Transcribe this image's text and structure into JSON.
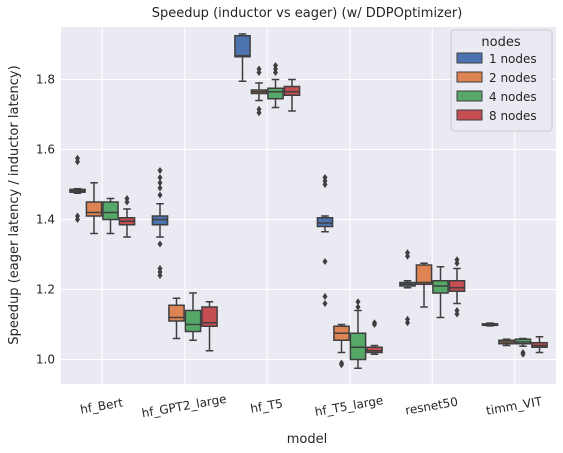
{
  "chart_data": {
    "type": "box",
    "title": "Speedup (inductor vs eager) (w/ DDPOptimizer)",
    "xlabel": "model",
    "ylabel": "Speedup (eager latency / inductor latency)",
    "ylim": [
      0.93,
      1.95
    ],
    "yticks": [
      "1.0",
      "1.2",
      "1.4",
      "1.6",
      "1.8"
    ],
    "yticks_values": [
      1.0,
      1.2,
      1.4,
      1.6,
      1.8
    ],
    "grid": true,
    "legend_position": "top-right",
    "legend_title": "nodes",
    "categories": [
      "hf_Bert",
      "hf_GPT2_large",
      "hf_T5",
      "hf_T5_large",
      "resnet50",
      "timm_VIT"
    ],
    "series": [
      {
        "name": "1 nodes",
        "color": "#4c72b0",
        "boxes": [
          {
            "q1": 1.478,
            "median": 1.482,
            "q3": 1.486,
            "whisker_low": 1.475,
            "whisker_high": 1.488,
            "outliers": [
              1.565,
              1.575,
              1.41,
              1.4
            ]
          },
          {
            "q1": 1.385,
            "median": 1.4,
            "q3": 1.41,
            "whisker_low": 1.35,
            "whisker_high": 1.445,
            "outliers": [
              1.47,
              1.49,
              1.505,
              1.52,
              1.54,
              1.33,
              1.26,
              1.25,
              1.24
            ]
          },
          {
            "q1": 1.865,
            "median": 1.868,
            "q3": 1.925,
            "whisker_low": 1.795,
            "whisker_high": 1.93,
            "outliers": []
          },
          {
            "q1": 1.38,
            "median": 1.39,
            "q3": 1.405,
            "whisker_low": 1.365,
            "whisker_high": 1.41,
            "outliers": [
              1.52,
              1.51,
              1.5,
              1.28,
              1.18,
              1.16
            ]
          },
          {
            "q1": 1.21,
            "median": 1.215,
            "q3": 1.22,
            "whisker_low": 1.205,
            "whisker_high": 1.225,
            "outliers": [
              1.305,
              1.295,
              1.115,
              1.105
            ]
          },
          {
            "q1": 1.098,
            "median": 1.1,
            "q3": 1.102,
            "whisker_low": 1.096,
            "whisker_high": 1.104,
            "outliers": []
          }
        ]
      },
      {
        "name": "2 nodes",
        "color": "#dd8452",
        "boxes": [
          {
            "q1": 1.41,
            "median": 1.42,
            "q3": 1.45,
            "whisker_low": 1.36,
            "whisker_high": 1.505,
            "outliers": []
          },
          {
            "q1": 1.11,
            "median": 1.12,
            "q3": 1.155,
            "whisker_low": 1.06,
            "whisker_high": 1.175,
            "outliers": []
          },
          {
            "q1": 1.76,
            "median": 1.765,
            "q3": 1.77,
            "whisker_low": 1.74,
            "whisker_high": 1.79,
            "outliers": [
              1.83,
              1.82,
              1.715,
              1.705
            ]
          },
          {
            "q1": 1.055,
            "median": 1.075,
            "q3": 1.095,
            "whisker_low": 1.02,
            "whisker_high": 1.1,
            "outliers": [
              0.99,
              0.985
            ]
          },
          {
            "q1": 1.215,
            "median": 1.22,
            "q3": 1.27,
            "whisker_low": 1.15,
            "whisker_high": 1.275,
            "outliers": []
          },
          {
            "q1": 1.045,
            "median": 1.05,
            "q3": 1.055,
            "whisker_low": 1.04,
            "whisker_high": 1.058,
            "outliers": []
          }
        ]
      },
      {
        "name": "4 nodes",
        "color": "#55a868",
        "boxes": [
          {
            "q1": 1.4,
            "median": 1.42,
            "q3": 1.45,
            "whisker_low": 1.36,
            "whisker_high": 1.46,
            "outliers": []
          },
          {
            "q1": 1.08,
            "median": 1.1,
            "q3": 1.14,
            "whisker_low": 1.055,
            "whisker_high": 1.19,
            "outliers": []
          },
          {
            "q1": 1.745,
            "median": 1.765,
            "q3": 1.775,
            "whisker_low": 1.72,
            "whisker_high": 1.8,
            "outliers": [
              1.84,
              1.83,
              1.82
            ]
          },
          {
            "q1": 1.0,
            "median": 1.035,
            "q3": 1.075,
            "whisker_low": 0.975,
            "whisker_high": 1.14,
            "outliers": [
              1.165,
              1.15
            ]
          },
          {
            "q1": 1.19,
            "median": 1.21,
            "q3": 1.225,
            "whisker_low": 1.12,
            "whisker_high": 1.265,
            "outliers": []
          },
          {
            "q1": 1.045,
            "median": 1.05,
            "q3": 1.058,
            "whisker_low": 1.038,
            "whisker_high": 1.06,
            "outliers": [
              1.015,
              1.02
            ]
          }
        ]
      },
      {
        "name": "8 nodes",
        "color": "#c44e52",
        "boxes": [
          {
            "q1": 1.385,
            "median": 1.395,
            "q3": 1.405,
            "whisker_low": 1.35,
            "whisker_high": 1.43,
            "outliers": [
              1.45,
              1.46
            ]
          },
          {
            "q1": 1.095,
            "median": 1.105,
            "q3": 1.15,
            "whisker_low": 1.025,
            "whisker_high": 1.165,
            "outliers": []
          },
          {
            "q1": 1.755,
            "median": 1.765,
            "q3": 1.78,
            "whisker_low": 1.71,
            "whisker_high": 1.8,
            "outliers": []
          },
          {
            "q1": 1.02,
            "median": 1.025,
            "q3": 1.035,
            "whisker_low": 1.015,
            "whisker_high": 1.04,
            "outliers": [
              1.1,
              1.105
            ]
          },
          {
            "q1": 1.195,
            "median": 1.205,
            "q3": 1.225,
            "whisker_low": 1.16,
            "whisker_high": 1.26,
            "outliers": [
              1.285,
              1.275,
              1.14,
              1.13
            ]
          },
          {
            "q1": 1.035,
            "median": 1.04,
            "q3": 1.048,
            "whisker_low": 1.02,
            "whisker_high": 1.065,
            "outliers": []
          }
        ]
      }
    ]
  }
}
